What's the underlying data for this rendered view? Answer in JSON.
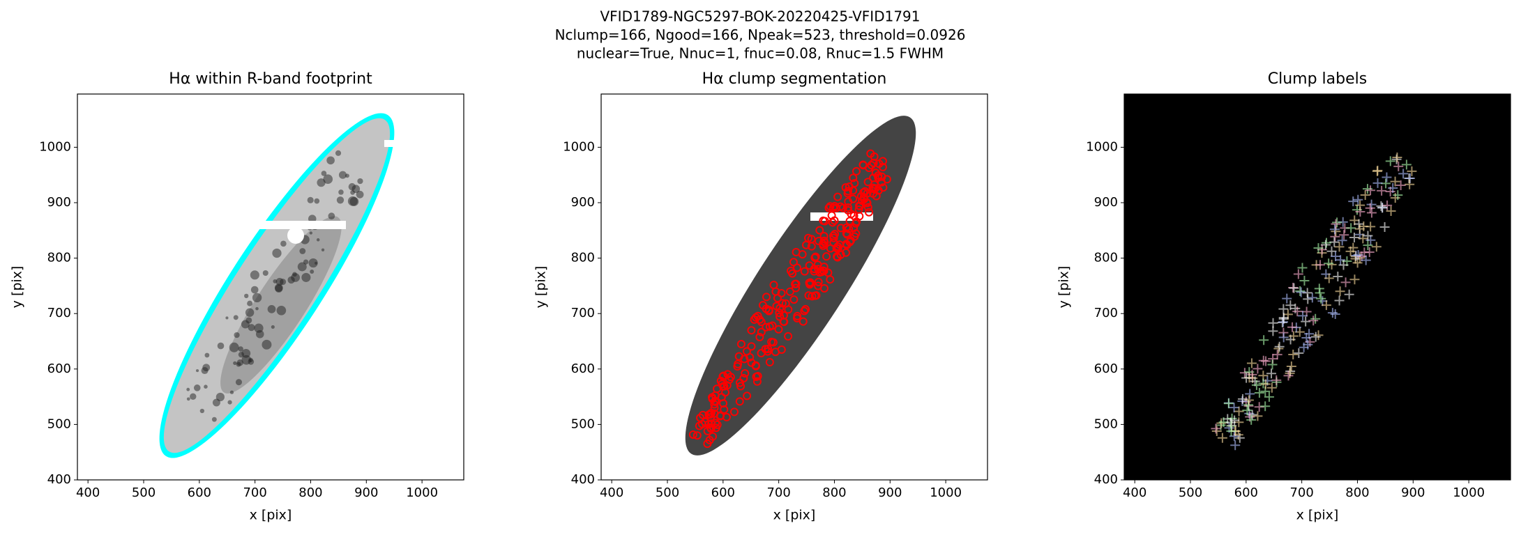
{
  "suptitle": [
    "VFID1789-NGC5297-BOK-20220425-VFID1791",
    "Nclump=166, Ngood=166, Npeak=523, threshold=0.0926",
    "nuclear=True, Nnuc=1, fnuc=0.08, Rnuc=1.5 FWHM"
  ],
  "chart_data": [
    {
      "type": "image",
      "title": "Hα within R-band footprint",
      "xlabel": "x [pix]",
      "ylabel": "y [pix]",
      "xlim": [
        381,
        1075
      ],
      "ylim": [
        400,
        1096
      ],
      "xticks": [
        400,
        500,
        600,
        700,
        800,
        900,
        1000
      ],
      "yticks": [
        400,
        500,
        600,
        700,
        800,
        900,
        1000
      ],
      "style": "footprint"
    },
    {
      "type": "image",
      "title": "Hα clump segmentation",
      "xlabel": "x [pix]",
      "ylabel": "y [pix]",
      "xlim": [
        381,
        1075
      ],
      "ylim": [
        400,
        1096
      ],
      "xticks": [
        400,
        500,
        600,
        700,
        800,
        900,
        1000
      ],
      "yticks": [
        400,
        500,
        600,
        700,
        800,
        900,
        1000
      ],
      "style": "segmentation"
    },
    {
      "type": "image",
      "title": "Clump labels",
      "xlabel": "x [pix]",
      "ylabel": "y [pix]",
      "xlim": [
        381,
        1075
      ],
      "ylim": [
        400,
        1096
      ],
      "xticks": [
        400,
        500,
        600,
        700,
        800,
        900,
        1000
      ],
      "yticks": [
        400,
        500,
        600,
        700,
        800,
        900,
        1000
      ],
      "style": "labels"
    }
  ]
}
